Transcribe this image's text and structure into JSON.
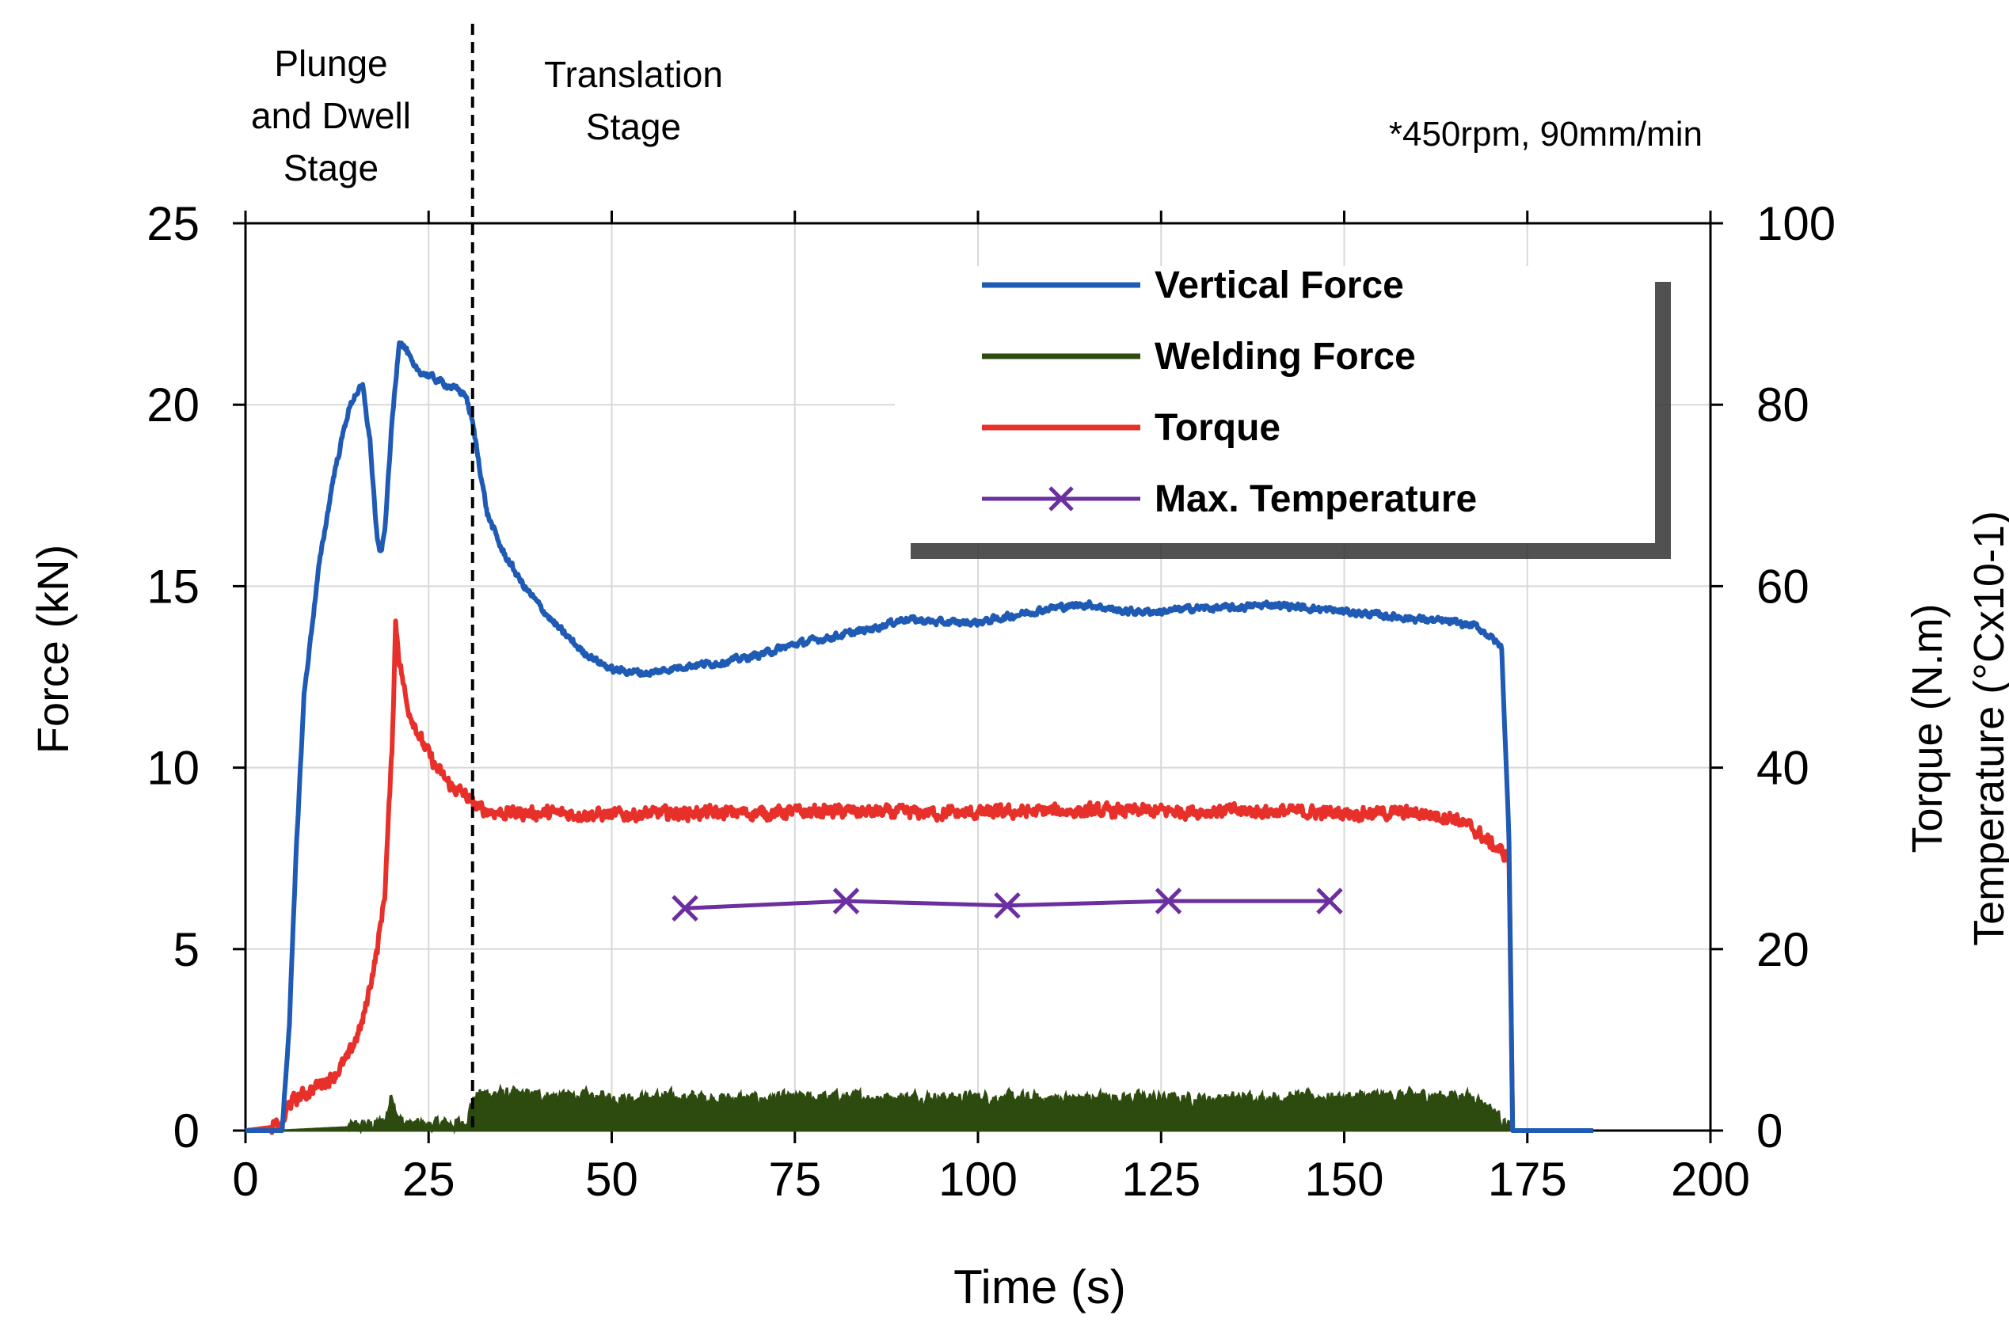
{
  "chart_data": {
    "type": "line",
    "title": "",
    "annotation": "*450rpm, 90mm/min",
    "stage_labels": [
      {
        "name": "plunge-dwell",
        "lines": [
          "Plunge",
          "and Dwell",
          "Stage"
        ],
        "x_center": 11
      },
      {
        "name": "translation",
        "lines": [
          "Translation",
          "Stage"
        ],
        "x_center": 52
      }
    ],
    "stage_divider_x": 31,
    "xlabel": "Time (s)",
    "ylabel": "Force (kN)",
    "y2label_lines": [
      "Torque (N.m)",
      "Temperature (°Cx10-1)"
    ],
    "xlim": [
      0,
      200
    ],
    "ylim": [
      0,
      25
    ],
    "y2lim": [
      0,
      100
    ],
    "xticks": [
      0,
      25,
      50,
      75,
      100,
      125,
      150,
      175,
      200
    ],
    "yticks": [
      0,
      5,
      10,
      15,
      20,
      25
    ],
    "y2ticks": [
      0,
      20,
      40,
      60,
      80,
      100
    ],
    "grid": true,
    "legend_position": "top-right",
    "colors": {
      "vertical": "#1f5bb4",
      "welding": "#2d4a0f",
      "torque": "#e8302a",
      "temperature": "#6b2fa0",
      "axis": "#000000",
      "grid": "#d8d8d8"
    },
    "series": [
      {
        "name": "Vertical Force",
        "key": "vertical",
        "axis": "left",
        "noise": 0.15,
        "x": [
          0,
          5,
          6,
          7,
          8,
          10,
          12,
          14,
          15,
          16,
          17,
          18,
          18.5,
          19,
          20,
          21,
          22,
          23,
          25,
          28,
          30,
          31,
          33,
          35,
          38,
          42,
          46,
          50,
          55,
          60,
          65,
          70,
          75,
          80,
          85,
          90,
          95,
          100,
          105,
          110,
          115,
          120,
          125,
          130,
          135,
          140,
          145,
          150,
          155,
          160,
          165,
          168,
          170,
          171.5,
          172.5,
          173,
          175,
          180,
          184
        ],
        "y": [
          0,
          0,
          3,
          8,
          12,
          15.5,
          18,
          19.8,
          20.3,
          20.5,
          19,
          16.2,
          15.9,
          16.5,
          19.5,
          21.8,
          21.5,
          21,
          20.8,
          20.5,
          20.3,
          19.5,
          17,
          16,
          15,
          14,
          13.2,
          12.7,
          12.6,
          12.8,
          12.9,
          13.1,
          13.4,
          13.6,
          13.8,
          14.1,
          14,
          14,
          14.2,
          14.4,
          14.5,
          14.3,
          14.3,
          14.4,
          14.4,
          14.5,
          14.4,
          14.3,
          14.2,
          14.1,
          14,
          13.9,
          13.6,
          13.3,
          8,
          0,
          0,
          0,
          0
        ]
      },
      {
        "name": "Welding Force",
        "key": "welding",
        "axis": "left",
        "noise": 0.3,
        "x": [
          0,
          5,
          10,
          15,
          19,
          20,
          21,
          22,
          25,
          30,
          31,
          32,
          33,
          35,
          40,
          50,
          60,
          70,
          80,
          90,
          100,
          110,
          120,
          130,
          140,
          150,
          160,
          165,
          168,
          170,
          172,
          173,
          175,
          184
        ],
        "y": [
          0,
          0,
          0.05,
          0.1,
          0.2,
          1.0,
          0.3,
          0.15,
          0.15,
          0.2,
          0.8,
          1.0,
          1.0,
          1.0,
          0.95,
          0.9,
          0.9,
          0.85,
          0.9,
          0.9,
          0.9,
          0.85,
          0.9,
          0.85,
          0.9,
          0.9,
          0.95,
          0.95,
          0.9,
          0.6,
          0.2,
          0,
          0,
          0
        ]
      },
      {
        "name": "Torque",
        "key": "torque",
        "axis": "right",
        "noise": 1.2,
        "x": [
          0,
          5,
          6,
          8,
          10,
          12,
          14,
          16,
          18,
          19,
          20,
          20.5,
          21,
          22,
          24,
          26,
          28,
          30,
          31,
          32,
          35,
          40,
          50,
          60,
          70,
          80,
          90,
          100,
          110,
          120,
          130,
          140,
          150,
          160,
          165,
          168,
          171,
          172.5,
          173,
          175,
          180,
          184
        ],
        "y": [
          0,
          0.5,
          3,
          4,
          5,
          6,
          8,
          12,
          20,
          26,
          42,
          56,
          52,
          47,
          43,
          40,
          38,
          37,
          36,
          35.5,
          35,
          35,
          34.8,
          35,
          35,
          35.2,
          35,
          35,
          35.2,
          35.2,
          35.2,
          35.2,
          35,
          35,
          34.5,
          33,
          31,
          30,
          0,
          0,
          0,
          0
        ]
      },
      {
        "name": "Max. Temperature",
        "key": "temperature",
        "axis": "right",
        "noise": 0,
        "markers": true,
        "x": [
          60,
          82,
          104,
          126,
          148
        ],
        "y": [
          24.5,
          25.3,
          24.8,
          25.3,
          25.3
        ]
      }
    ]
  }
}
